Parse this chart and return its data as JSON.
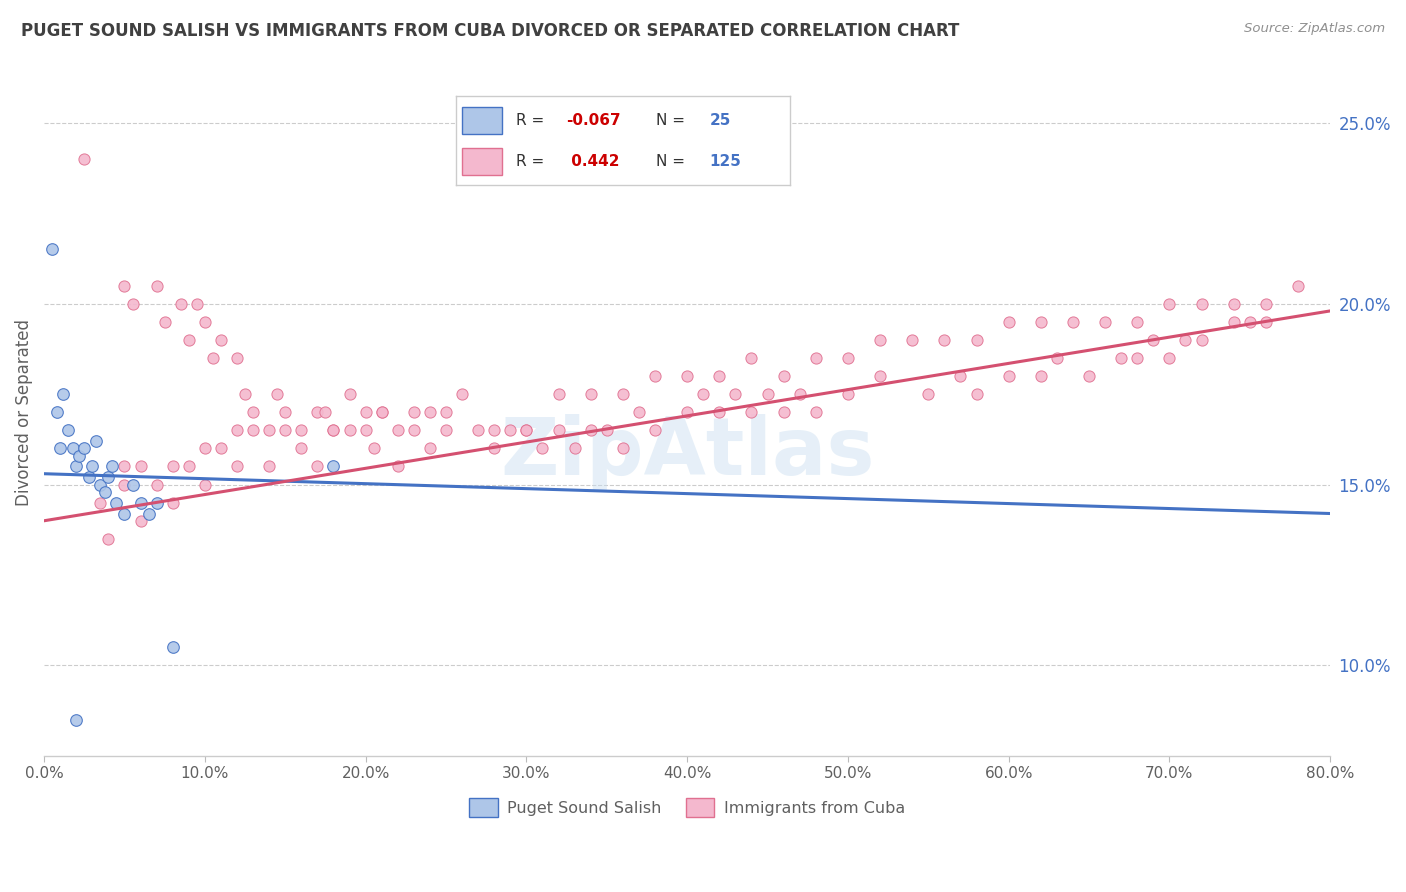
{
  "title": "PUGET SOUND SALISH VS IMMIGRANTS FROM CUBA DIVORCED OR SEPARATED CORRELATION CHART",
  "source": "Source: ZipAtlas.com",
  "ylabel": "Divorced or Separated",
  "x_min": 0.0,
  "x_max": 80.0,
  "y_min": 7.5,
  "y_max": 26.5,
  "y_ticks": [
    10.0,
    15.0,
    20.0,
    25.0
  ],
  "x_ticks": [
    0.0,
    10.0,
    20.0,
    30.0,
    40.0,
    50.0,
    60.0,
    70.0,
    80.0
  ],
  "blue_color": "#aec6e8",
  "pink_color": "#f4b8ce",
  "blue_edge_color": "#4472c4",
  "pink_edge_color": "#e07090",
  "blue_line_color": "#4472c4",
  "pink_line_color": "#d45070",
  "legend_R_color": "#cc0000",
  "legend_N_color": "#4472c4",
  "blue_scatter_x": [
    0.5,
    0.8,
    1.0,
    1.2,
    1.5,
    1.8,
    2.0,
    2.2,
    2.5,
    2.8,
    3.0,
    3.2,
    3.5,
    3.8,
    4.0,
    4.2,
    4.5,
    5.0,
    5.5,
    6.0,
    6.5,
    7.0,
    8.0,
    18.0,
    2.0
  ],
  "blue_scatter_y": [
    21.5,
    17.0,
    16.0,
    17.5,
    16.5,
    16.0,
    15.5,
    15.8,
    16.0,
    15.2,
    15.5,
    16.2,
    15.0,
    14.8,
    15.2,
    15.5,
    14.5,
    14.2,
    15.0,
    14.5,
    14.2,
    14.5,
    10.5,
    15.5,
    8.5
  ],
  "pink_scatter_x": [
    2.5,
    5.0,
    5.5,
    7.0,
    7.5,
    8.5,
    9.0,
    9.5,
    10.0,
    10.5,
    11.0,
    12.0,
    12.5,
    13.0,
    14.0,
    14.5,
    15.0,
    16.0,
    17.0,
    17.5,
    18.0,
    19.0,
    20.0,
    20.5,
    21.0,
    22.0,
    23.0,
    24.0,
    25.0,
    27.0,
    28.0,
    29.0,
    30.0,
    31.0,
    32.0,
    33.0,
    34.0,
    35.0,
    36.0,
    37.0,
    38.0,
    40.0,
    41.0,
    42.0,
    43.0,
    44.0,
    45.0,
    46.0,
    47.0,
    48.0,
    50.0,
    52.0,
    55.0,
    57.0,
    58.0,
    60.0,
    62.0,
    63.0,
    65.0,
    67.0,
    68.0,
    69.0,
    70.0,
    71.0,
    72.0,
    74.0,
    75.0,
    76.0,
    3.5,
    4.0,
    5.0,
    6.0,
    8.0,
    10.0,
    12.0,
    14.0,
    16.0,
    18.0,
    20.0,
    22.0,
    24.0,
    26.0,
    28.0,
    30.0,
    32.0,
    34.0,
    36.0,
    38.0,
    40.0,
    42.0,
    44.0,
    46.0,
    48.0,
    50.0,
    52.0,
    54.0,
    56.0,
    58.0,
    60.0,
    62.0,
    64.0,
    66.0,
    68.0,
    70.0,
    72.0,
    74.0,
    76.0,
    78.0,
    5.0,
    6.0,
    7.0,
    8.0,
    9.0,
    10.0,
    11.0,
    12.0,
    13.0,
    15.0,
    17.0,
    19.0,
    21.0,
    23.0,
    25.0
  ],
  "pink_scatter_y": [
    24.0,
    20.5,
    20.0,
    20.5,
    19.5,
    20.0,
    19.0,
    20.0,
    19.5,
    18.5,
    19.0,
    18.5,
    17.5,
    17.0,
    16.5,
    17.5,
    17.0,
    16.5,
    17.0,
    17.0,
    16.5,
    17.5,
    16.5,
    16.0,
    17.0,
    16.5,
    17.0,
    16.0,
    16.5,
    16.5,
    16.0,
    16.5,
    16.5,
    16.0,
    16.5,
    16.0,
    16.5,
    16.5,
    16.0,
    17.0,
    16.5,
    17.0,
    17.5,
    17.0,
    17.5,
    17.0,
    17.5,
    17.0,
    17.5,
    17.0,
    17.5,
    18.0,
    17.5,
    18.0,
    17.5,
    18.0,
    18.0,
    18.5,
    18.0,
    18.5,
    18.5,
    19.0,
    18.5,
    19.0,
    19.0,
    19.5,
    19.5,
    19.5,
    14.5,
    13.5,
    15.0,
    14.0,
    14.5,
    15.0,
    15.5,
    15.5,
    16.0,
    16.5,
    17.0,
    15.5,
    17.0,
    17.5,
    16.5,
    16.5,
    17.5,
    17.5,
    17.5,
    18.0,
    18.0,
    18.0,
    18.5,
    18.0,
    18.5,
    18.5,
    19.0,
    19.0,
    19.0,
    19.0,
    19.5,
    19.5,
    19.5,
    19.5,
    19.5,
    20.0,
    20.0,
    20.0,
    20.0,
    20.5,
    15.5,
    15.5,
    15.0,
    15.5,
    15.5,
    16.0,
    16.0,
    16.5,
    16.5,
    16.5,
    15.5,
    16.5,
    17.0,
    16.5,
    17.0
  ],
  "blue_trend_x": [
    0.0,
    80.0
  ],
  "blue_trend_y": [
    15.3,
    14.2
  ],
  "pink_trend_x": [
    0.0,
    80.0
  ],
  "pink_trend_y": [
    14.0,
    19.8
  ],
  "watermark": "ZipAtlas",
  "background_color": "#ffffff",
  "grid_color": "#cccccc",
  "title_color": "#404040",
  "axis_label_color": "#606060",
  "right_tick_color": "#4472c4"
}
